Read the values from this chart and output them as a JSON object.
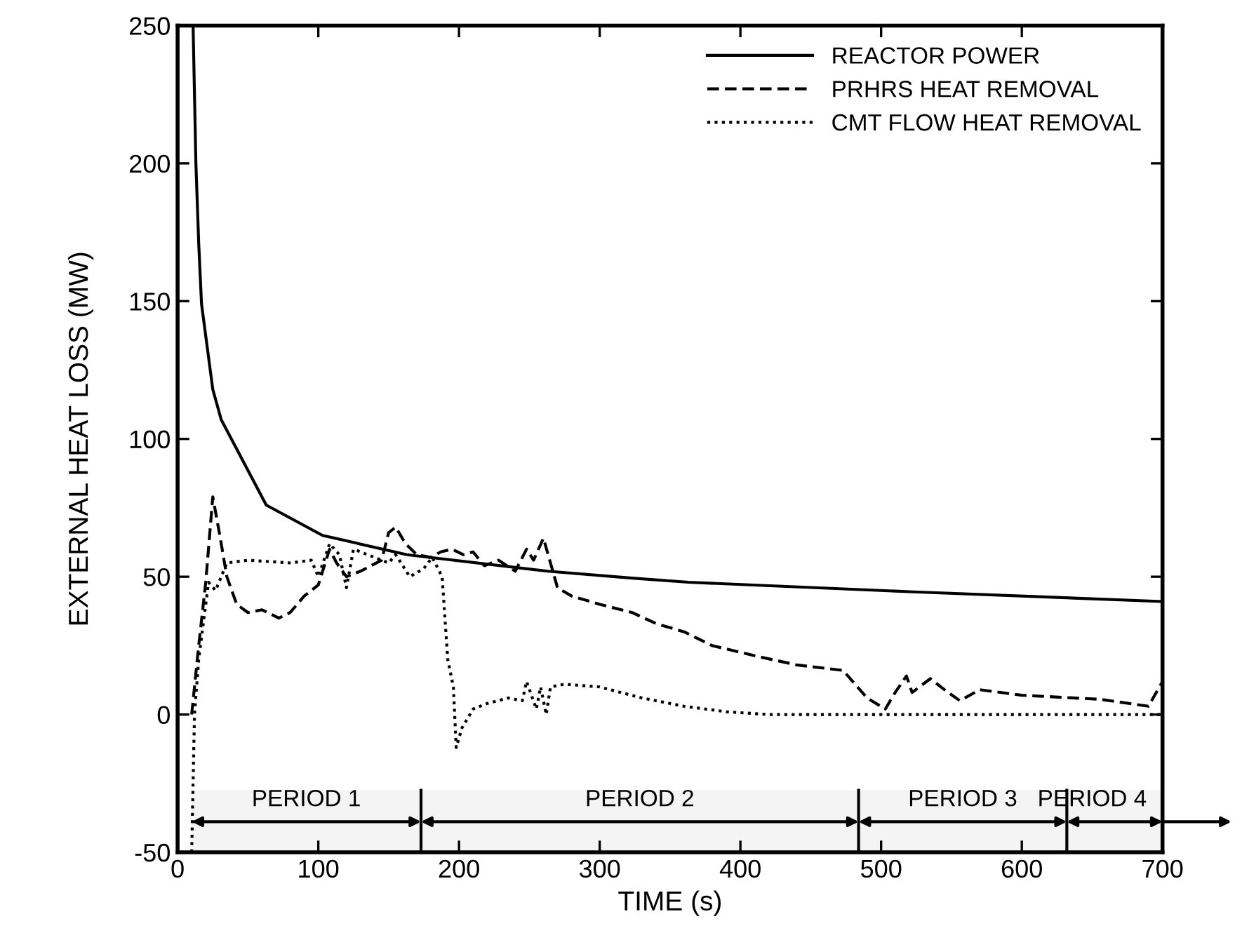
{
  "chart_data": {
    "type": "line",
    "xlabel": "TIME (s)",
    "ylabel": "EXTERNAL HEAT LOSS (MW)",
    "xlim": [
      0,
      700
    ],
    "ylim": [
      -50,
      250
    ],
    "xticks": [
      0,
      100,
      200,
      300,
      400,
      500,
      600,
      700
    ],
    "yticks": [
      -50,
      0,
      50,
      100,
      150,
      200,
      250
    ],
    "legend": "top right",
    "grid": false,
    "series": [
      {
        "name": "REACTOR POWER",
        "color": "#000000",
        "line_style": "solid",
        "x": [
          11,
          13,
          15,
          17,
          25,
          31,
          63,
          103,
          163,
          263,
          323,
          363,
          523,
          700
        ],
        "values": [
          250,
          200,
          171,
          149,
          118,
          107,
          76,
          65,
          58,
          52,
          49.5,
          48,
          44.5,
          41
        ]
      },
      {
        "name": "PRHRS HEAT REMOVAL",
        "color": "#000000",
        "line_style": "dashed",
        "x": [
          10,
          15,
          20,
          25,
          30,
          35,
          42,
          50,
          60,
          72,
          80,
          90,
          100,
          108,
          113,
          120,
          130,
          145,
          150,
          155,
          162,
          170,
          180,
          187,
          195,
          203,
          210,
          218,
          228,
          240,
          248,
          253,
          260,
          265,
          270,
          280,
          300,
          323,
          340,
          360,
          380,
          413,
          440,
          473,
          490,
          503,
          510,
          518,
          522,
          535,
          545,
          556,
          570,
          600,
          656,
          690,
          700
        ],
        "values": [
          0,
          25,
          48,
          79,
          65,
          50,
          40,
          37,
          38,
          35,
          37,
          43,
          47,
          60,
          55,
          50,
          52,
          56,
          66,
          68,
          62,
          58,
          57,
          59,
          60,
          58,
          59,
          54,
          56,
          52,
          60,
          56,
          64,
          55,
          46,
          43,
          40,
          37,
          33,
          30,
          25,
          21,
          18,
          16,
          6,
          2,
          8,
          14,
          8,
          13,
          9,
          5,
          9,
          7,
          5.5,
          3,
          12
        ]
      },
      {
        "name": "CMT FLOW HEAT REMOVAL",
        "color": "#000000",
        "line_style": "dotted",
        "x": [
          10,
          12,
          15,
          22,
          27,
          35,
          50,
          80,
          95,
          100,
          108,
          115,
          120,
          125,
          140,
          150,
          155,
          165,
          175,
          181,
          188,
          192,
          196,
          198,
          202,
          210,
          220,
          235,
          245,
          248,
          255,
          258,
          262,
          265,
          275,
          300,
          330,
          360,
          390,
          420,
          600,
          700
        ],
        "values": [
          -50,
          0,
          20,
          48,
          45,
          55,
          56,
          55,
          56,
          50,
          62,
          58,
          46,
          60,
          57,
          55,
          58,
          50,
          53,
          57,
          50,
          20,
          10,
          -12,
          -5,
          2,
          4,
          6,
          5,
          12,
          2,
          10,
          0,
          10,
          11,
          10,
          6,
          3,
          1,
          0,
          0,
          0
        ]
      }
    ],
    "bands": [
      {
        "axis": "x",
        "from": 10,
        "to": 173,
        "label": "PERIOD 1",
        "color": "#f4f4f4"
      },
      {
        "axis": "x",
        "from": 173,
        "to": 484,
        "label": "PERIOD 2",
        "color": "#f4f4f4"
      },
      {
        "axis": "x",
        "from": 484,
        "to": 632,
        "label": "PERIOD 3",
        "color": "#f4f4f4"
      },
      {
        "axis": "x",
        "from": 632,
        "to": 700,
        "label": "PERIOD 4",
        "color": "#f4f4f4"
      }
    ]
  }
}
